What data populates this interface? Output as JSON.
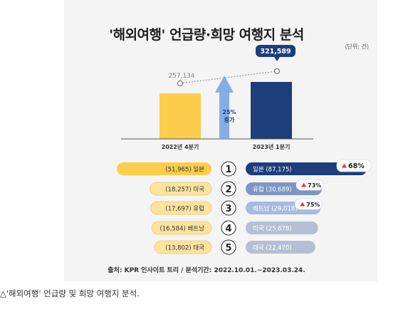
{
  "title": "'해외여행' 언급량·희망 여행지 분석",
  "unit_label": "(단위: 건)",
  "source": "출처: KPR 인사이트 트리 / 분석기간: 2022.10.01.~2023.03.24.",
  "caption": "△'해외여행' 언급량 및 희망 여행지 분석.",
  "colors": {
    "yellow": "#fbcd4b",
    "yellow_light": "#fde3a0",
    "navy": "#1e3e7b",
    "blue_mid": "#7d96c2",
    "blue_light": "#a7bae0",
    "gray_pill": "#b5bfd3",
    "arrow_blue": "#7ba6e2",
    "up_red": "#e53935"
  },
  "chart_data": [
    {
      "type": "bar",
      "categories": [
        "2022년 4분기",
        "2023년 1분기"
      ],
      "values": [
        257134,
        321589
      ],
      "value_labels": [
        "257,134",
        "321,589"
      ],
      "growth_label_line1": "25%",
      "growth_label_line2": "증가"
    },
    {
      "type": "table",
      "ranks": [
        "1",
        "2",
        "3",
        "4",
        "5"
      ],
      "left": [
        {
          "text": "(51,965) 일본",
          "value": 51965
        },
        {
          "text": "(18,257) 미국",
          "value": 18257
        },
        {
          "text": "(17,697) 유럽",
          "value": 17697
        },
        {
          "text": "(16,584) 베트남",
          "value": 16584
        },
        {
          "text": "(13,802) 태국",
          "value": 13802
        }
      ],
      "right": [
        {
          "text": "일본 (87,175)",
          "value": 87175,
          "badge": "68%"
        },
        {
          "text": "유럽 (30,689)",
          "value": 30689,
          "badge": "73%"
        },
        {
          "text": "베트남 (29,018)",
          "value": 29018,
          "badge": "75%"
        },
        {
          "text": "미국 (25,878)",
          "value": 25878,
          "badge": ""
        },
        {
          "text": "태국 (22,470)",
          "value": 22470,
          "badge": ""
        }
      ]
    }
  ]
}
